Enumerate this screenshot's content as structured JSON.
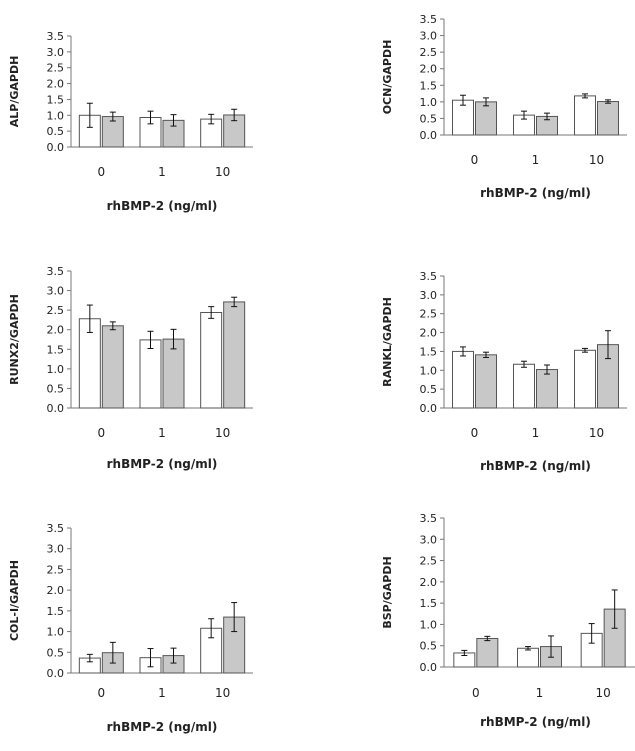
{
  "chart_data": [
    {
      "type": "bar",
      "ylabel": "ALP/GAPDH",
      "xlabel": "rhBMP-2 (ng/ml)",
      "categories": [
        "0",
        "1",
        "10"
      ],
      "ylim": [
        0,
        3.5
      ],
      "yticks": [
        "0.0",
        "0.5",
        "1.0",
        "1.5",
        "2.0",
        "2.5",
        "3.0",
        "3.5"
      ],
      "series": [
        {
          "color": "#ffffff",
          "values": [
            1.0,
            0.93,
            0.88
          ],
          "errors": [
            0.38,
            0.2,
            0.15
          ]
        },
        {
          "color": "#c8c8c8",
          "values": [
            0.96,
            0.84,
            1.01
          ],
          "errors": [
            0.14,
            0.18,
            0.18
          ]
        }
      ]
    },
    {
      "type": "bar",
      "ylabel": "OCN/GAPDH",
      "xlabel": "rhBMP-2 (ng/ml)",
      "categories": [
        "0",
        "1",
        "10"
      ],
      "ylim": [
        0,
        3.5
      ],
      "yticks": [
        "0.0",
        "0.5",
        "1.0",
        "1.5",
        "2.0",
        "2.5",
        "3.0",
        "3.5"
      ],
      "series": [
        {
          "color": "#ffffff",
          "values": [
            1.05,
            0.6,
            1.18
          ],
          "errors": [
            0.15,
            0.12,
            0.06
          ]
        },
        {
          "color": "#c8c8c8",
          "values": [
            1.0,
            0.56,
            1.01
          ],
          "errors": [
            0.12,
            0.1,
            0.05
          ]
        }
      ]
    },
    {
      "type": "bar",
      "ylabel": "RUNX2/GAPDH",
      "xlabel": "rhBMP-2 (ng/ml)",
      "categories": [
        "0",
        "1",
        "10"
      ],
      "ylim": [
        0,
        3.5
      ],
      "yticks": [
        "0.0",
        "0.5",
        "1.0",
        "1.5",
        "2.0",
        "2.5",
        "3.0",
        "3.5"
      ],
      "series": [
        {
          "color": "#ffffff",
          "values": [
            2.28,
            1.74,
            2.44
          ],
          "errors": [
            0.35,
            0.22,
            0.15
          ]
        },
        {
          "color": "#c8c8c8",
          "values": [
            2.1,
            1.76,
            2.71
          ],
          "errors": [
            0.1,
            0.25,
            0.12
          ]
        }
      ]
    },
    {
      "type": "bar",
      "ylabel": "RANKL/GAPDH",
      "xlabel": "rhBMP-2 (ng/ml)",
      "categories": [
        "0",
        "1",
        "10"
      ],
      "ylim": [
        0,
        3.5
      ],
      "yticks": [
        "0.0",
        "0.5",
        "1.0",
        "1.5",
        "2.0",
        "2.5",
        "3.0",
        "3.5"
      ],
      "series": [
        {
          "color": "#ffffff",
          "values": [
            1.5,
            1.16,
            1.53
          ],
          "errors": [
            0.12,
            0.08,
            0.05
          ]
        },
        {
          "color": "#c8c8c8",
          "values": [
            1.41,
            1.02,
            1.68
          ],
          "errors": [
            0.07,
            0.12,
            0.37
          ]
        }
      ]
    },
    {
      "type": "bar",
      "ylabel": "COL-I/GAPDH",
      "xlabel": "rhBMP-2 (ng/ml)",
      "categories": [
        "0",
        "1",
        "10"
      ],
      "ylim": [
        0,
        3.5
      ],
      "yticks": [
        "0.0",
        "0.5",
        "1.0",
        "1.5",
        "2.0",
        "2.5",
        "3.0",
        "3.5"
      ],
      "series": [
        {
          "color": "#ffffff",
          "values": [
            0.36,
            0.37,
            1.08
          ],
          "errors": [
            0.09,
            0.22,
            0.23
          ]
        },
        {
          "color": "#c8c8c8",
          "values": [
            0.49,
            0.42,
            1.35
          ],
          "errors": [
            0.25,
            0.18,
            0.35
          ]
        }
      ]
    },
    {
      "type": "bar",
      "ylabel": "BSP/GAPDH",
      "xlabel": "rhBMP-2 (ng/ml)",
      "categories": [
        "0",
        "1",
        "10"
      ],
      "ylim": [
        0,
        3.5
      ],
      "yticks": [
        "0.0",
        "0.5",
        "1.0",
        "1.5",
        "2.0",
        "2.5",
        "3.0",
        "3.5"
      ],
      "series": [
        {
          "color": "#ffffff",
          "values": [
            0.33,
            0.44,
            0.79
          ],
          "errors": [
            0.06,
            0.04,
            0.23
          ]
        },
        {
          "color": "#c8c8c8",
          "values": [
            0.67,
            0.48,
            1.36
          ],
          "errors": [
            0.05,
            0.25,
            0.45
          ]
        }
      ]
    }
  ]
}
